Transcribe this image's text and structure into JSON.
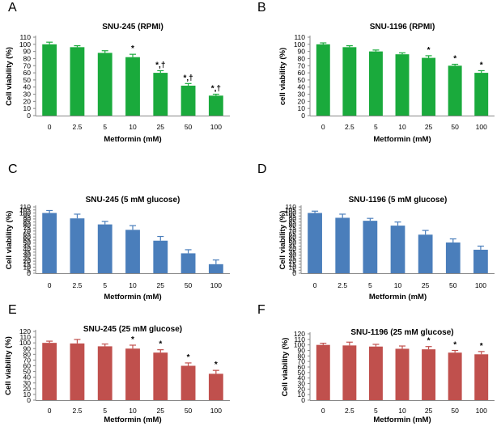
{
  "chart_data": [
    {
      "panel": "A",
      "type": "bar",
      "title": "SNU-245 (RPMI)",
      "xlabel": "Metformin (mM)",
      "ylabel": "Cell viability (%)",
      "color": "#1aaa3c",
      "categories": [
        "0",
        "2.5",
        "5",
        "10",
        "25",
        "50",
        "100"
      ],
      "values": [
        100,
        96,
        88,
        82,
        60,
        42,
        28
      ],
      "errors": [
        3,
        2,
        3,
        4,
        3,
        3,
        2
      ],
      "annotations": [
        "",
        "",
        "",
        "*",
        "*,†",
        "*,†",
        "*,†"
      ],
      "ylim": [
        0,
        110
      ],
      "yticks": [
        0,
        10,
        20,
        30,
        40,
        50,
        60,
        70,
        80,
        90,
        100,
        110
      ]
    },
    {
      "panel": "B",
      "type": "bar",
      "title": "SNU-1196 (RPMI)",
      "xlabel": "Metformin (mM)",
      "ylabel": "cell viability (%)",
      "color": "#1aaa3c",
      "categories": [
        "0",
        "2.5",
        "5",
        "10",
        "25",
        "50",
        "100"
      ],
      "values": [
        100,
        96,
        90,
        86,
        81,
        70,
        60
      ],
      "errors": [
        2,
        2,
        2,
        2,
        3,
        2,
        3
      ],
      "annotations": [
        "",
        "",
        "",
        "",
        "*",
        "*",
        "*"
      ],
      "ylim": [
        0,
        110
      ],
      "yticks": [
        0,
        10,
        20,
        30,
        40,
        50,
        60,
        70,
        80,
        90,
        100,
        110
      ]
    },
    {
      "panel": "C",
      "type": "bar",
      "title": "SNU-245  (5 mM glucose)",
      "xlabel": "Metformin (mM)",
      "ylabel": "Cell viability (%)",
      "color": "#4a7ebb",
      "categories": [
        "0",
        "2.5",
        "5",
        "10",
        "25",
        "50",
        "100"
      ],
      "values": [
        100,
        91,
        81,
        72,
        54,
        33,
        15
      ],
      "errors": [
        4,
        7,
        5,
        7,
        7,
        6,
        7
      ],
      "annotations": [
        "",
        "",
        "",
        "",
        "",
        "",
        ""
      ],
      "ylim": [
        0,
        110
      ],
      "yticks": [
        0,
        5,
        10,
        15,
        20,
        25,
        30,
        35,
        40,
        45,
        50,
        55,
        60,
        65,
        70,
        75,
        80,
        85,
        90,
        95,
        100,
        105,
        110
      ]
    },
    {
      "panel": "D",
      "type": "bar",
      "title": "SNU-1196  (5 mM glucose)",
      "xlabel": "Metformin (mM)",
      "ylabel": "Cell viability (%)",
      "color": "#4a7ebb",
      "categories": [
        "0",
        "2.5",
        "5",
        "10",
        "25",
        "50",
        "100"
      ],
      "values": [
        100,
        92,
        87,
        79,
        64,
        51,
        39
      ],
      "errors": [
        3,
        6,
        4,
        6,
        7,
        6,
        6
      ],
      "annotations": [
        "",
        "",
        "",
        "",
        "",
        "",
        ""
      ],
      "ylim": [
        0,
        110
      ],
      "yticks": [
        0,
        5,
        10,
        15,
        20,
        25,
        30,
        35,
        40,
        45,
        50,
        55,
        60,
        65,
        70,
        75,
        80,
        85,
        90,
        95,
        100,
        105,
        110
      ]
    },
    {
      "panel": "E",
      "type": "bar",
      "title": "SNU-245  (25 mM glucose)",
      "xlabel": "Metformin (mM)",
      "ylabel": "Cell viability (%)",
      "color": "#c0504d",
      "categories": [
        "0",
        "2.5",
        "5",
        "10",
        "25",
        "50",
        "100"
      ],
      "values": [
        100,
        99,
        94,
        90,
        83,
        60,
        46
      ],
      "errors": [
        3,
        7,
        4,
        6,
        5,
        5,
        6
      ],
      "annotations": [
        "",
        "",
        "",
        "*",
        "*",
        "*",
        "*"
      ],
      "ylim": [
        0,
        120
      ],
      "yticks": [
        0,
        10,
        20,
        30,
        40,
        50,
        60,
        70,
        80,
        90,
        100,
        110,
        120
      ]
    },
    {
      "panel": "F",
      "type": "bar",
      "title": "SNU-1196  (25 mM glucose)",
      "xlabel": "Metformin (mM)",
      "ylabel": "Cell viability (%)",
      "color": "#c0504d",
      "categories": [
        "0",
        "2.5",
        "5",
        "10",
        "25",
        "50",
        "100"
      ],
      "values": [
        100,
        99,
        97,
        93,
        92,
        86,
        83
      ],
      "errors": [
        3,
        6,
        4,
        5,
        5,
        4,
        5
      ],
      "annotations": [
        "",
        "",
        "",
        "",
        "*",
        "*",
        "*"
      ],
      "ylim": [
        0,
        120
      ],
      "yticks": [
        0,
        10,
        20,
        30,
        40,
        50,
        60,
        70,
        80,
        90,
        100,
        110,
        120
      ]
    }
  ]
}
